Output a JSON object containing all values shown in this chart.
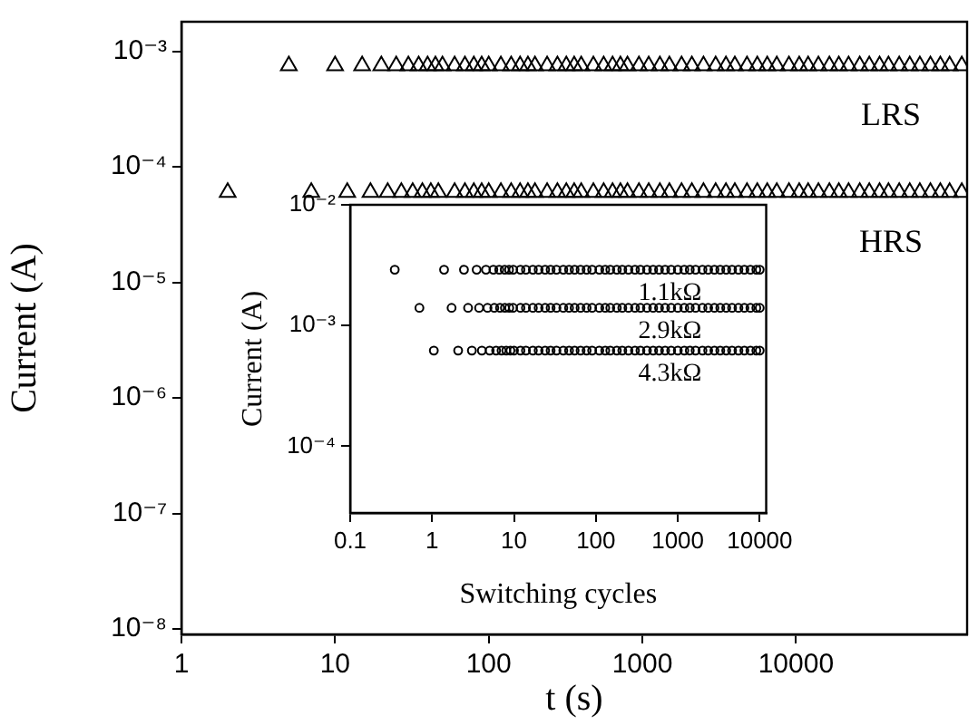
{
  "chart_data": [
    {
      "type": "scatter",
      "xlabel": "t (s)",
      "ylabel": "Current (A)",
      "log": "xy",
      "grid": false,
      "legend": false,
      "marker": "triangle",
      "xlim": [
        1,
        130000
      ],
      "xticks": [
        1,
        10,
        100,
        1000,
        10000
      ],
      "ylim": [
        9e-09,
        0.0018
      ],
      "yticks": [
        {
          "value": 1e-08,
          "label": "10⁻⁸"
        },
        {
          "value": 1e-07,
          "label": "10⁻⁷"
        },
        {
          "value": 1e-06,
          "label": "10⁻⁶"
        },
        {
          "value": 1e-05,
          "label": "10⁻⁵"
        },
        {
          "value": 0.0001,
          "label": "10⁻⁴"
        },
        {
          "value": 0.001,
          "label": "10⁻³"
        }
      ],
      "series": [
        {
          "name": "LRS",
          "color": "#000000",
          "x": [
            5,
            10,
            15,
            20,
            25,
            30,
            35,
            40,
            45,
            50,
            60,
            70,
            80,
            90,
            100,
            120,
            140,
            160,
            180,
            200,
            240,
            280,
            320,
            360,
            400,
            480,
            560,
            640,
            720,
            800,
            950,
            1100,
            1300,
            1500,
            1800,
            2100,
            2500,
            3000,
            3500,
            4000,
            4800,
            5600,
            6500,
            7500,
            9000,
            10500,
            12000,
            14000,
            16500,
            19000,
            22000,
            26000,
            30000,
            35000,
            40000,
            47000,
            55000,
            64000,
            75000,
            87000,
            100000,
            120000
          ],
          "values": [
            0.00075,
            0.00075,
            0.00075,
            0.00075,
            0.00075,
            0.00075,
            0.00075,
            0.00075,
            0.00075,
            0.00075,
            0.00075,
            0.00075,
            0.00075,
            0.00075,
            0.00075,
            0.00075,
            0.00075,
            0.00075,
            0.00075,
            0.00075,
            0.00075,
            0.00075,
            0.00075,
            0.00075,
            0.00075,
            0.00075,
            0.00075,
            0.00075,
            0.00075,
            0.00075,
            0.00075,
            0.00075,
            0.00075,
            0.00075,
            0.00075,
            0.00075,
            0.00075,
            0.00075,
            0.00075,
            0.00075,
            0.00075,
            0.00075,
            0.00075,
            0.00075,
            0.00075,
            0.00075,
            0.00075,
            0.00075,
            0.00075,
            0.00075,
            0.00075,
            0.00075,
            0.00075,
            0.00075,
            0.00075,
            0.00075,
            0.00075,
            0.00075,
            0.00075,
            0.00075,
            0.00075,
            0.00075
          ]
        },
        {
          "name": "HRS",
          "color": "#000000",
          "x": [
            2,
            7,
            12,
            17,
            22,
            27,
            32,
            37,
            42,
            47,
            60,
            70,
            80,
            90,
            100,
            120,
            140,
            160,
            180,
            200,
            240,
            280,
            320,
            360,
            400,
            480,
            560,
            640,
            720,
            800,
            950,
            1100,
            1300,
            1500,
            1800,
            2100,
            2500,
            3000,
            3500,
            4000,
            4800,
            5600,
            6500,
            7500,
            9000,
            10500,
            12000,
            14000,
            16500,
            19000,
            22000,
            26000,
            30000,
            35000,
            40000,
            47000,
            55000,
            64000,
            75000,
            87000,
            100000,
            120000
          ],
          "values": [
            6e-05,
            6e-05,
            6e-05,
            6e-05,
            6e-05,
            6e-05,
            6e-05,
            6e-05,
            6e-05,
            6e-05,
            6e-05,
            6e-05,
            6e-05,
            6e-05,
            6e-05,
            6e-05,
            6e-05,
            6e-05,
            6e-05,
            6e-05,
            6e-05,
            6e-05,
            6e-05,
            6e-05,
            6e-05,
            6e-05,
            6e-05,
            6e-05,
            6e-05,
            6e-05,
            6e-05,
            6e-05,
            6e-05,
            6e-05,
            6e-05,
            6e-05,
            6e-05,
            6e-05,
            6e-05,
            6e-05,
            6e-05,
            6e-05,
            6e-05,
            6e-05,
            6e-05,
            6e-05,
            6e-05,
            6e-05,
            6e-05,
            6e-05,
            6e-05,
            6e-05,
            6e-05,
            6e-05,
            6e-05,
            6e-05,
            6e-05,
            6e-05,
            6e-05,
            6e-05,
            6e-05,
            6e-05
          ]
        }
      ]
    },
    {
      "type": "scatter",
      "xlabel": "Switching cycles",
      "ylabel": "Current (A)",
      "log": "xy",
      "grid": false,
      "legend": false,
      "marker": "circle",
      "xlim": [
        0.1,
        12000
      ],
      "xticks": [
        0.1,
        1,
        10,
        100,
        1000,
        10000
      ],
      "ylim": [
        2.8e-05,
        0.01
      ],
      "yticks": [
        {
          "value": 0.0001,
          "label": "10⁻⁴"
        },
        {
          "value": 0.001,
          "label": "10⁻³"
        },
        {
          "value": 0.01,
          "label": "10⁻²"
        }
      ],
      "series": [
        {
          "name": "1.1kΩ",
          "color": "#000000",
          "x": [
            0.35,
            1.4,
            2.45,
            3.5,
            4.55,
            5.6,
            6.6,
            7.7,
            8.7,
            9.8,
            12,
            14,
            17,
            20,
            24,
            28,
            33,
            40,
            47,
            55,
            65,
            77,
            90,
            110,
            130,
            150,
            180,
            210,
            250,
            300,
            350,
            420,
            500,
            590,
            700,
            830,
            1000,
            1200,
            1400,
            1650,
            2000,
            2350,
            2800,
            3300,
            3900,
            4600,
            5500,
            6500,
            7700,
            9100,
            10000
          ],
          "values": [
            0.0029,
            0.0029,
            0.0029,
            0.0029,
            0.0029,
            0.0029,
            0.0029,
            0.0029,
            0.0029,
            0.0029,
            0.0029,
            0.0029,
            0.0029,
            0.0029,
            0.0029,
            0.0029,
            0.0029,
            0.0029,
            0.0029,
            0.0029,
            0.0029,
            0.0029,
            0.0029,
            0.0029,
            0.0029,
            0.0029,
            0.0029,
            0.0029,
            0.0029,
            0.0029,
            0.0029,
            0.0029,
            0.0029,
            0.0029,
            0.0029,
            0.0029,
            0.0029,
            0.0029,
            0.0029,
            0.0029,
            0.0029,
            0.0029,
            0.0029,
            0.0029,
            0.0029,
            0.0029,
            0.0029,
            0.0029,
            0.0029,
            0.0029,
            0.0029
          ]
        },
        {
          "name": "2.9kΩ",
          "color": "#000000",
          "x": [
            0.7,
            1.73,
            2.75,
            3.75,
            4.75,
            5.75,
            6.75,
            7.75,
            8.75,
            9.75,
            12,
            14,
            17,
            20,
            24,
            28,
            33,
            40,
            47,
            55,
            65,
            77,
            90,
            110,
            130,
            150,
            180,
            210,
            250,
            300,
            350,
            420,
            500,
            590,
            700,
            830,
            1000,
            1200,
            1400,
            1650,
            2000,
            2350,
            2800,
            3300,
            3900,
            4600,
            5500,
            6500,
            7700,
            9100,
            10000
          ],
          "values": [
            0.0014,
            0.0014,
            0.0014,
            0.0014,
            0.0014,
            0.0014,
            0.0014,
            0.0014,
            0.0014,
            0.0014,
            0.0014,
            0.0014,
            0.0014,
            0.0014,
            0.0014,
            0.0014,
            0.0014,
            0.0014,
            0.0014,
            0.0014,
            0.0014,
            0.0014,
            0.0014,
            0.0014,
            0.0014,
            0.0014,
            0.0014,
            0.0014,
            0.0014,
            0.0014,
            0.0014,
            0.0014,
            0.0014,
            0.0014,
            0.0014,
            0.0014,
            0.0014,
            0.0014,
            0.0014,
            0.0014,
            0.0014,
            0.0014,
            0.0014,
            0.0014,
            0.0014,
            0.0014,
            0.0014,
            0.0014,
            0.0014,
            0.0014,
            0.0014
          ]
        },
        {
          "name": "4.3kΩ",
          "color": "#000000",
          "x": [
            1.05,
            2.08,
            3.06,
            4.05,
            5.05,
            6.05,
            7.05,
            8.05,
            9.05,
            10,
            12,
            14,
            17,
            20,
            24,
            28,
            33,
            40,
            47,
            55,
            65,
            77,
            90,
            110,
            130,
            150,
            180,
            210,
            250,
            300,
            350,
            420,
            500,
            590,
            700,
            830,
            1000,
            1200,
            1400,
            1650,
            2000,
            2350,
            2800,
            3300,
            3900,
            4600,
            5500,
            6500,
            7700,
            9100,
            10000
          ],
          "values": [
            0.00062,
            0.00062,
            0.00062,
            0.00062,
            0.00062,
            0.00062,
            0.00062,
            0.00062,
            0.00062,
            0.00062,
            0.00062,
            0.00062,
            0.00062,
            0.00062,
            0.00062,
            0.00062,
            0.00062,
            0.00062,
            0.00062,
            0.00062,
            0.00062,
            0.00062,
            0.00062,
            0.00062,
            0.00062,
            0.00062,
            0.00062,
            0.00062,
            0.00062,
            0.00062,
            0.00062,
            0.00062,
            0.00062,
            0.00062,
            0.00062,
            0.00062,
            0.00062,
            0.00062,
            0.00062,
            0.00062,
            0.00062,
            0.00062,
            0.00062,
            0.00062,
            0.00062,
            0.00062,
            0.00062,
            0.00062,
            0.00062,
            0.00062,
            0.00062
          ]
        }
      ]
    }
  ]
}
